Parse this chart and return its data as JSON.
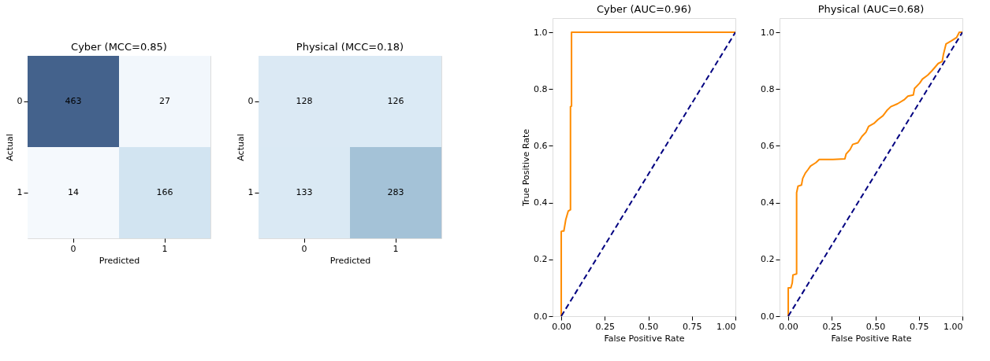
{
  "chart_data": [
    {
      "type": "heatmap",
      "title": "Cyber (MCC=0.85)",
      "xlabel": "Predicted",
      "ylabel": "Actual",
      "categories": [
        "0",
        "1"
      ],
      "y_categories": [
        "0",
        "1"
      ],
      "cells": [
        [
          463,
          27
        ],
        [
          14,
          166
        ]
      ],
      "data_labels": true
    },
    {
      "type": "heatmap",
      "title": "Physical (MCC=0.18)",
      "xlabel": "Predicted",
      "ylabel": "Actual",
      "categories": [
        "0",
        "1"
      ],
      "y_categories": [
        "0",
        "1"
      ],
      "cells": [
        [
          128,
          126
        ],
        [
          133,
          283
        ]
      ],
      "data_labels": true
    },
    {
      "type": "line",
      "title": "Cyber (AUC=0.96)",
      "xlabel": "False Positive Rate",
      "ylabel": "True Positive Rate",
      "xlim": [
        -0.05,
        1.0
      ],
      "ylim": [
        0,
        1.05
      ],
      "xticks": [
        {
          "value": 0,
          "label": "0.00"
        },
        {
          "value": 0.25,
          "label": "0.25"
        },
        {
          "value": 0.5,
          "label": "0.50"
        },
        {
          "value": 0.75,
          "label": "0.75"
        },
        {
          "value": 1,
          "label": "1.00"
        }
      ],
      "yticks": [
        {
          "value": 0,
          "label": "0.0"
        },
        {
          "value": 0.2,
          "label": "0.2"
        },
        {
          "value": 0.4,
          "label": "0.4"
        },
        {
          "value": 0.6,
          "label": "0.6"
        },
        {
          "value": 0.8,
          "label": "0.8"
        },
        {
          "value": 1,
          "label": "1.0"
        }
      ],
      "series": [
        {
          "color": "#ff8c00",
          "line_style": "solid",
          "x": [
            0,
            0,
            0.005,
            0.015,
            0.026,
            0.04,
            0.053,
            0.053,
            0.059,
            0.059,
            1.0
          ],
          "values": [
            0,
            0.298,
            0.3,
            0.3,
            0.34,
            0.37,
            0.375,
            0.738,
            0.74,
            1.0,
            1.0
          ]
        },
        {
          "color": "#000080",
          "line_style": "dashed",
          "x": [
            0,
            1
          ],
          "values": [
            0,
            1
          ]
        }
      ]
    },
    {
      "type": "line",
      "title": "Physical (AUC=0.68)",
      "xlabel": "False Positive Rate",
      "xlim": [
        -0.05,
        1.0
      ],
      "ylim": [
        0,
        1.05
      ],
      "xticks": [
        {
          "value": 0,
          "label": "0.00"
        },
        {
          "value": 0.25,
          "label": "0.25"
        },
        {
          "value": 0.5,
          "label": "0.50"
        },
        {
          "value": 0.75,
          "label": "0.75"
        },
        {
          "value": 1,
          "label": "1.00"
        }
      ],
      "yticks": [
        {
          "value": 0,
          "label": "0.0"
        },
        {
          "value": 0.2,
          "label": "0.2"
        },
        {
          "value": 0.4,
          "label": "0.4"
        },
        {
          "value": 0.6,
          "label": "0.6"
        },
        {
          "value": 0.8,
          "label": "0.8"
        },
        {
          "value": 1,
          "label": "1.0"
        }
      ],
      "series": [
        {
          "color": "#ff8c00",
          "line_style": "solid",
          "x": [
            0,
            0,
            0.015,
            0.023,
            0.027,
            0.048,
            0.048,
            0.056,
            0.076,
            0.083,
            0.098,
            0.113,
            0.128,
            0.159,
            0.178,
            0.257,
            0.325,
            0.332,
            0.355,
            0.37,
            0.4,
            0.423,
            0.446,
            0.462,
            0.492,
            0.514,
            0.544,
            0.567,
            0.589,
            0.627,
            0.665,
            0.687,
            0.718,
            0.725,
            0.755,
            0.77,
            0.801,
            0.823,
            0.861,
            0.884,
            0.891,
            0.906,
            0.937,
            0.967,
            0.982,
            1.0
          ],
          "values": [
            0,
            0.1,
            0.1,
            0.117,
            0.145,
            0.149,
            0.435,
            0.458,
            0.462,
            0.485,
            0.504,
            0.516,
            0.529,
            0.541,
            0.552,
            0.552,
            0.554,
            0.571,
            0.587,
            0.605,
            0.611,
            0.633,
            0.648,
            0.669,
            0.679,
            0.692,
            0.706,
            0.725,
            0.738,
            0.748,
            0.762,
            0.775,
            0.779,
            0.802,
            0.821,
            0.835,
            0.849,
            0.863,
            0.89,
            0.897,
            0.922,
            0.959,
            0.97,
            0.982,
            1.0,
            1.0
          ]
        },
        {
          "color": "#000080",
          "line_style": "dashed",
          "x": [
            0,
            1
          ],
          "values": [
            0,
            1
          ]
        }
      ]
    }
  ]
}
